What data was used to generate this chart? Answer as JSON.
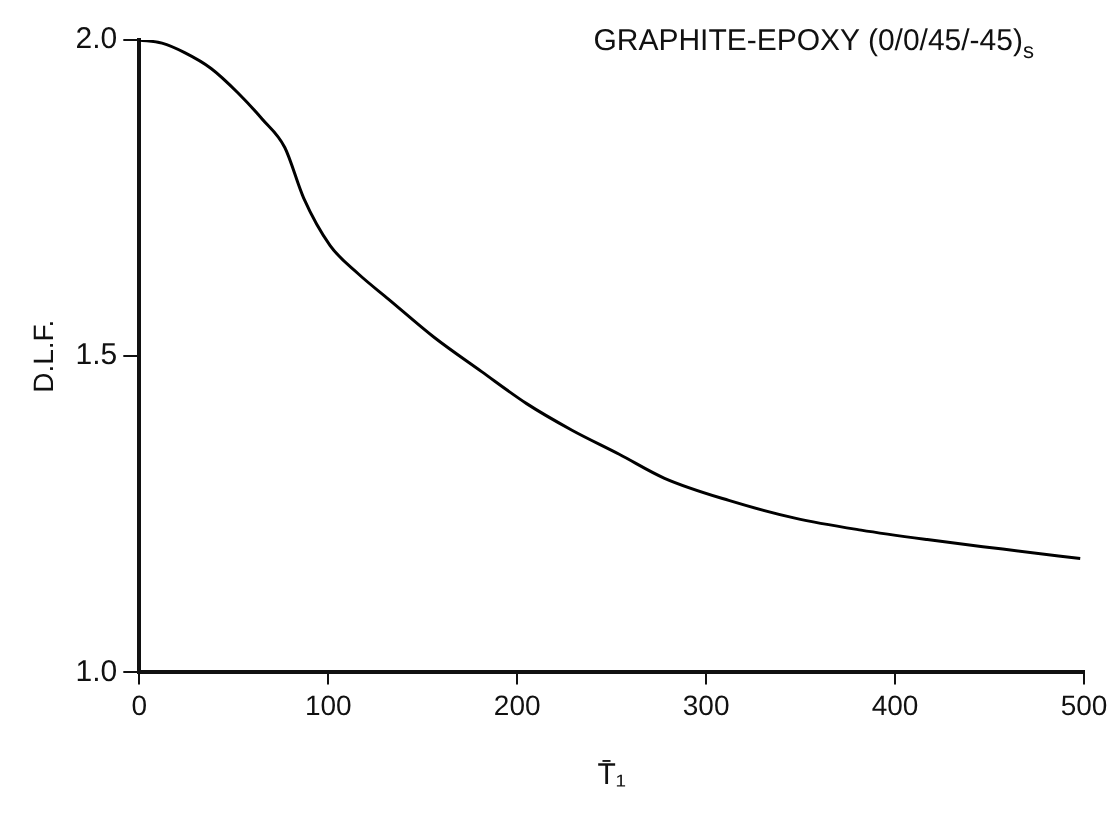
{
  "chart_data": {
    "type": "line",
    "title": "GRAPHITE-EPOXY (0/0/45/-45)$_{s}$",
    "xlabel": "T̄₁",
    "ylabel": "D.L.F.",
    "series": [
      {
        "color": "#000000",
        "x": [
          0,
          12,
          24,
          38,
          52,
          65,
          77,
          87,
          101,
          116,
          132,
          156,
          181,
          205,
          229,
          254,
          278,
          312,
          347,
          382,
          417,
          457,
          498
        ],
        "values": [
          2.0,
          1.995,
          1.98,
          1.955,
          1.917,
          1.875,
          1.83,
          1.75,
          1.675,
          1.63,
          1.59,
          1.53,
          1.476,
          1.425,
          1.383,
          1.345,
          1.307,
          1.272,
          1.244,
          1.225,
          1.21,
          1.195,
          1.18
        ]
      }
    ],
    "xlim": [
      0,
      500
    ],
    "xticks": [
      0,
      100,
      200,
      300,
      400,
      500
    ],
    "ylim": [
      1.0,
      2.0
    ],
    "yticks": [
      {
        "value": 1.0,
        "label": "1.0"
      },
      {
        "value": 1.5,
        "label": "1.5"
      },
      {
        "value": 2.0,
        "label": "2.0"
      }
    ],
    "grid": false,
    "legend": false,
    "marker": "none",
    "line_style": "solid"
  }
}
